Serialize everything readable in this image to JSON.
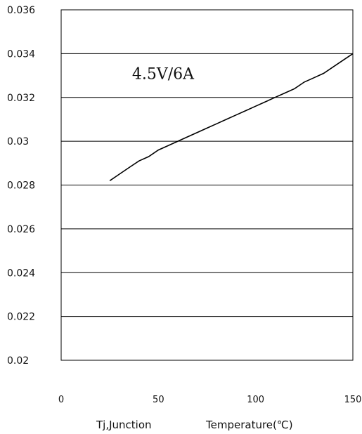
{
  "chart_data": {
    "type": "line",
    "title": "",
    "xlabel_main": "Tj,Junction",
    "xlabel_unit": "Temperature(℃)",
    "ylabel": "",
    "xlim": [
      0,
      150
    ],
    "ylim": [
      0.02,
      0.036
    ],
    "x_ticks": [
      0,
      50,
      100,
      150
    ],
    "x_tick_labels": [
      "0",
      "50",
      "100",
      "150"
    ],
    "y_ticks": [
      0.02,
      0.022,
      0.024,
      0.026,
      0.028,
      0.03,
      0.032,
      0.034,
      0.036
    ],
    "y_tick_labels": [
      "0.02",
      "0.022",
      "0.024",
      "0.026",
      "0.028",
      "0.03",
      "0.032",
      "0.034",
      "0.036"
    ],
    "grid": true,
    "annotation": {
      "text": "4.5V/6A",
      "x": 35,
      "y": 0.0331
    },
    "series": [
      {
        "x": [
          25,
          30,
          35,
          40,
          45,
          50,
          55,
          60,
          65,
          70,
          75,
          80,
          85,
          90,
          95,
          100,
          105,
          110,
          115,
          120,
          125,
          130,
          135,
          140,
          145,
          150
        ],
        "values": [
          0.0282,
          0.0285,
          0.0288,
          0.0291,
          0.0293,
          0.0296,
          0.0298,
          0.03,
          0.0302,
          0.0304,
          0.0306,
          0.0308,
          0.031,
          0.0312,
          0.0314,
          0.0316,
          0.0318,
          0.032,
          0.0322,
          0.0324,
          0.0327,
          0.0329,
          0.0331,
          0.0334,
          0.0337,
          0.034
        ]
      }
    ],
    "colors": {
      "line": "#000000",
      "grid": "#000000",
      "background": "#ffffff"
    }
  }
}
